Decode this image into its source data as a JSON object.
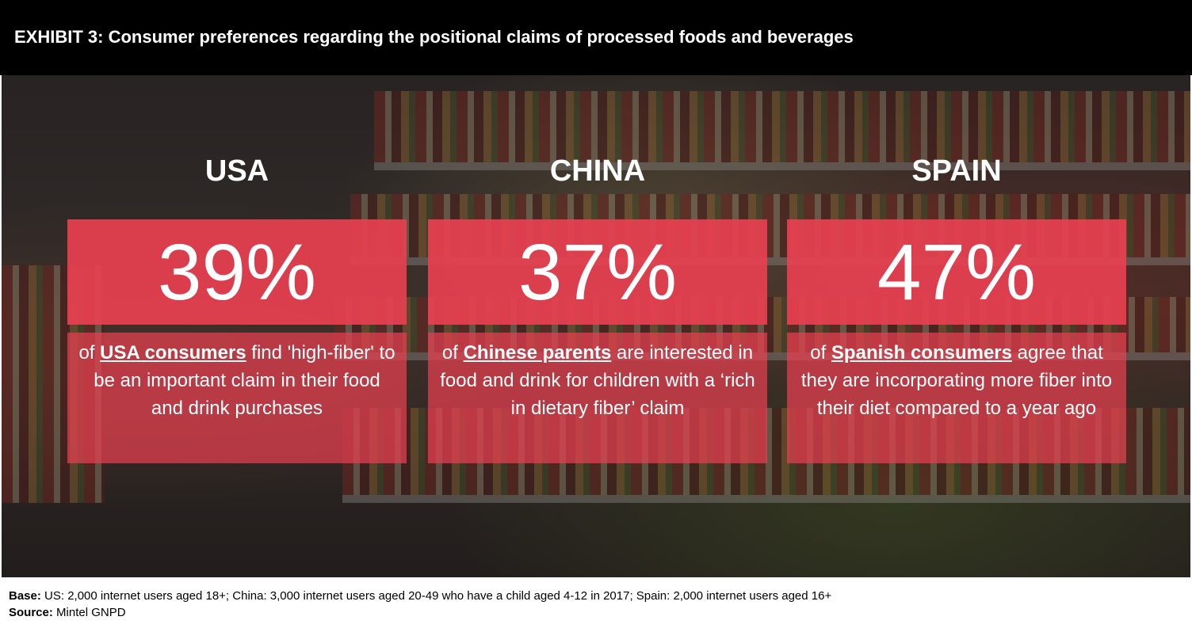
{
  "header": {
    "title": "EXHIBIT 3: Consumer preferences regarding the positional claims of processed foods and beverages"
  },
  "panels": [
    {
      "country": "USA",
      "percent": "39%",
      "desc_pre": "of ",
      "desc_highlight": "USA consumers",
      "desc_post": " find 'high-fiber' to be an important claim in their food and drink purchases"
    },
    {
      "country": "CHINA",
      "percent": "37%",
      "desc_pre": "of ",
      "desc_highlight": "Chinese parents",
      "desc_post": " are interested in food and drink for children with a ‘rich in dietary fiber’ claim"
    },
    {
      "country": "SPAIN",
      "percent": "47%",
      "desc_pre": "of ",
      "desc_highlight": "Spanish consumers",
      "desc_post": " agree that they are incorporating more fiber into their diet compared to a year ago"
    }
  ],
  "footer": {
    "base_label": "Base:",
    "base_text": " US: 2,000 internet users aged 18+; China: 3,000 internet users aged 20-49 who have a child aged 4-12 in 2017; Spain: 2,000 internet users aged 16+",
    "source_label": "Source:",
    "source_text": " Mintel GNPD"
  },
  "colors": {
    "title_bg": "#000000",
    "accent": "#e84050",
    "text_light": "#ffffff"
  }
}
